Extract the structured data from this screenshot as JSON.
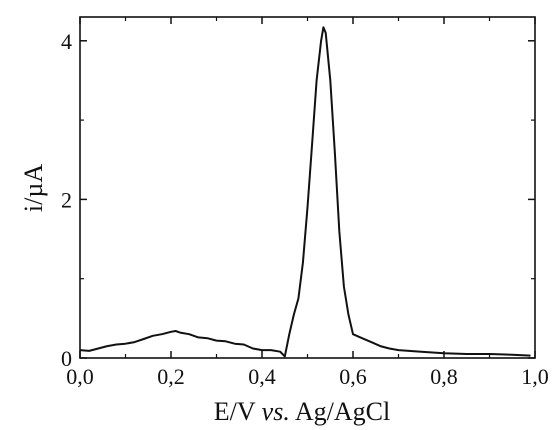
{
  "chart_data": {
    "type": "line",
    "title": "",
    "xlabel_parts": [
      "E/V ",
      "vs.",
      " Ag/AgCl"
    ],
    "ylabel": "i/µA",
    "xlim": [
      0.0,
      1.0
    ],
    "ylim": [
      0,
      4.3
    ],
    "grid": false,
    "x_ticks": [
      0.0,
      0.2,
      0.4,
      0.6,
      0.8,
      1.0
    ],
    "x_tick_labels": [
      "0,0",
      "0,2",
      "0,4",
      "0,6",
      "0,8",
      "1,0"
    ],
    "y_ticks": [
      0,
      2,
      4
    ],
    "y_tick_labels": [
      "0",
      "2",
      "4"
    ],
    "series": [
      {
        "color": "#111111",
        "x": [
          0.0,
          0.02,
          0.04,
          0.06,
          0.08,
          0.1,
          0.12,
          0.14,
          0.16,
          0.18,
          0.2,
          0.21,
          0.22,
          0.24,
          0.26,
          0.28,
          0.3,
          0.32,
          0.34,
          0.36,
          0.38,
          0.4,
          0.42,
          0.44,
          0.45,
          0.46,
          0.47,
          0.48,
          0.49,
          0.5,
          0.51,
          0.52,
          0.53,
          0.535,
          0.54,
          0.55,
          0.56,
          0.57,
          0.58,
          0.59,
          0.6,
          0.62,
          0.64,
          0.66,
          0.68,
          0.7,
          0.75,
          0.8,
          0.85,
          0.9,
          0.95,
          0.99
        ],
        "y": [
          0.1,
          0.09,
          0.12,
          0.15,
          0.17,
          0.18,
          0.2,
          0.24,
          0.28,
          0.3,
          0.33,
          0.34,
          0.32,
          0.3,
          0.26,
          0.25,
          0.22,
          0.21,
          0.18,
          0.17,
          0.12,
          0.1,
          0.1,
          0.08,
          0.02,
          0.3,
          0.55,
          0.75,
          1.2,
          1.9,
          2.7,
          3.5,
          4.0,
          4.17,
          4.1,
          3.5,
          2.6,
          1.6,
          0.9,
          0.55,
          0.3,
          0.25,
          0.2,
          0.15,
          0.12,
          0.1,
          0.08,
          0.06,
          0.05,
          0.05,
          0.04,
          0.03
        ]
      }
    ]
  }
}
